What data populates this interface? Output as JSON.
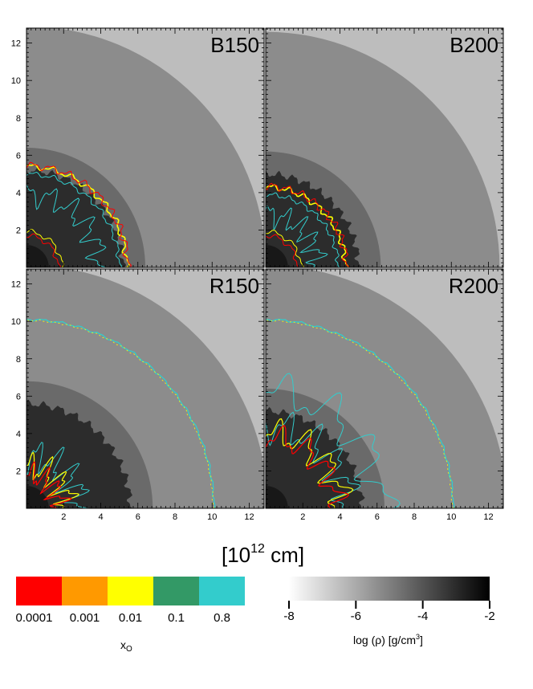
{
  "chart_data": {
    "type": "heatmap",
    "description_of_axes": "2D density maps in four panels sharing axes in units of 10^12 cm",
    "axis_label": "[10",
    "axis_label_exp": "12",
    "axis_label_unit": " cm]",
    "xlim": [
      0,
      12.8
    ],
    "ylim": [
      0,
      12.8
    ],
    "x_ticks": [
      2,
      4,
      6,
      8,
      10,
      12
    ],
    "y_ticks": [
      2,
      4,
      6,
      8,
      10,
      12
    ],
    "panels": [
      {
        "label": "B150",
        "outer_shock_radius": 12.9,
        "inner_radius": 5.2,
        "front_radius": 5.4
      },
      {
        "label": "B200",
        "outer_shock_radius": 12.6,
        "inner_radius": 5.0,
        "front_radius": 4.3
      },
      {
        "label": "R150",
        "outer_shock_radius": 13.0,
        "inner_radius": 5.6,
        "front_radius": 10.1
      },
      {
        "label": "R200",
        "outer_shock_radius": 13.0,
        "inner_radius": 5.2,
        "front_radius": 10.1
      }
    ],
    "colorbar_xo": {
      "title": "x",
      "title_sub": "O",
      "tick_labels": [
        "0.0001",
        "0.001",
        "0.01",
        "0.1",
        "0.8"
      ],
      "colors": [
        "#ff0000",
        "#ff9900",
        "#ffff00",
        "#339966",
        "#33cccc"
      ]
    },
    "colorbar_rho": {
      "title": "log (ρ)  [g/cm",
      "title_exp": "3",
      "title_end": "]",
      "range": [
        -8,
        -2
      ],
      "tick_values": [
        -8,
        -6,
        -4,
        -2
      ],
      "tick_labels": [
        "-8",
        "-6",
        "-4",
        "-2"
      ]
    }
  }
}
